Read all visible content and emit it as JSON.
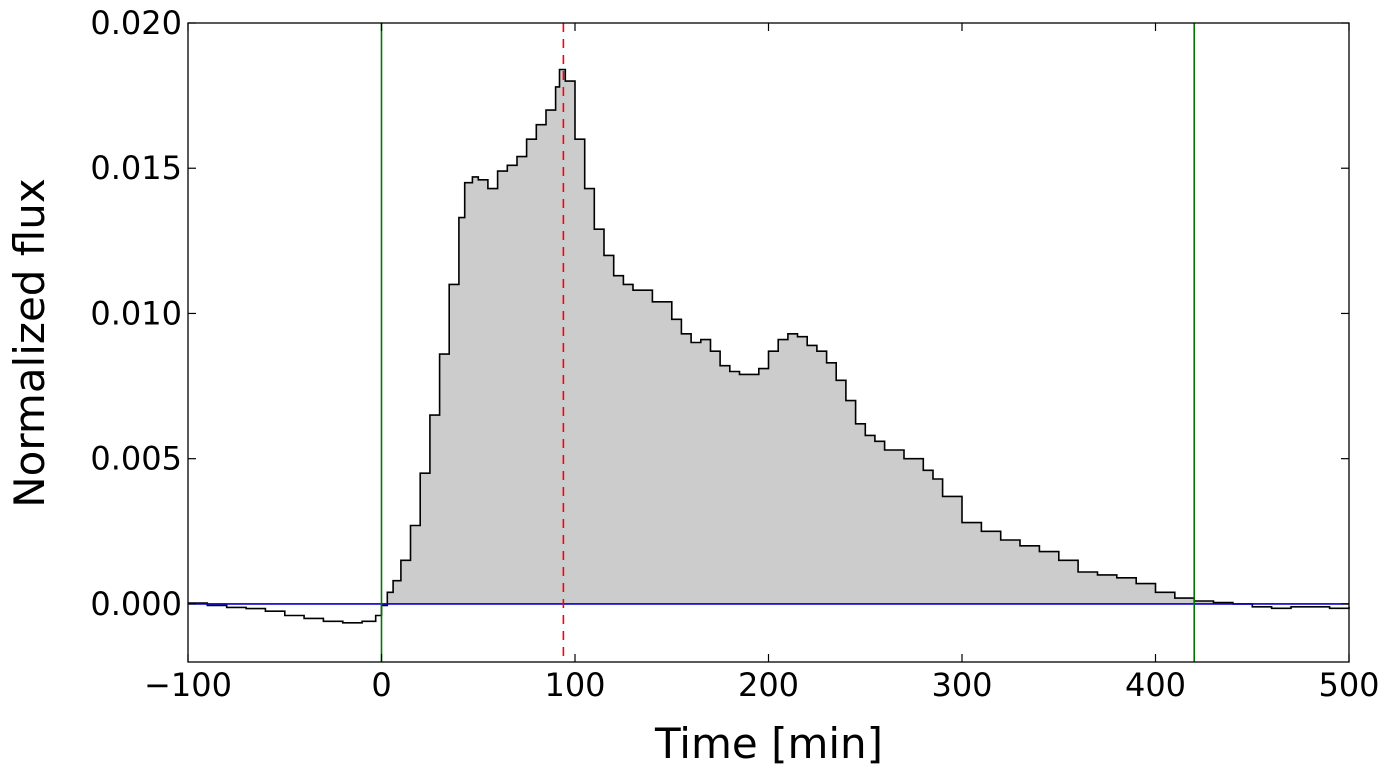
{
  "chart_data": {
    "type": "area",
    "title": "",
    "xlabel": "Time [min]",
    "ylabel": "Normalized flux",
    "xlim": [
      -100,
      500
    ],
    "ylim": [
      -0.002,
      0.02
    ],
    "x_ticks": [
      -100,
      0,
      100,
      200,
      300,
      400,
      500
    ],
    "x_tick_labels": [
      "−100",
      "0",
      "100",
      "200",
      "300",
      "400",
      "500"
    ],
    "y_ticks": [
      0.0,
      0.005,
      0.01,
      0.015,
      0.02
    ],
    "y_tick_labels": [
      "0.000",
      "0.005",
      "0.010",
      "0.015",
      "0.020"
    ],
    "grid": false,
    "series": [
      {
        "style": "step",
        "color": "#000000",
        "fill_color": "#cccccc",
        "fill_above": 0.0,
        "x": [
          -100,
          -90,
          -80,
          -70,
          -60,
          -50,
          -40,
          -30,
          -20,
          -10,
          -3,
          0,
          3,
          6,
          10,
          15,
          20,
          25,
          30,
          35,
          40,
          43,
          47,
          50,
          55,
          60,
          65,
          70,
          75,
          80,
          85,
          90,
          92,
          95,
          100,
          105,
          110,
          115,
          120,
          125,
          130,
          140,
          150,
          155,
          160,
          165,
          170,
          175,
          180,
          185,
          190,
          195,
          200,
          205,
          210,
          215,
          220,
          225,
          230,
          235,
          240,
          245,
          250,
          255,
          260,
          270,
          280,
          285,
          290,
          300,
          310,
          320,
          330,
          340,
          350,
          360,
          370,
          380,
          390,
          400,
          410,
          420,
          430,
          440,
          450,
          460,
          470,
          480,
          490,
          500
        ],
        "y": [
          3e-05,
          -5e-05,
          -0.00012,
          -0.00016,
          -0.00025,
          -0.0004,
          -0.0005,
          -0.0006,
          -0.00065,
          -0.0006,
          -0.0004,
          -5e-05,
          0.0004,
          0.0008,
          0.0015,
          0.0027,
          0.0045,
          0.0065,
          0.0086,
          0.011,
          0.0133,
          0.0145,
          0.0147,
          0.0146,
          0.0143,
          0.0149,
          0.0151,
          0.0154,
          0.016,
          0.0165,
          0.017,
          0.0178,
          0.0184,
          0.018,
          0.016,
          0.0143,
          0.0129,
          0.012,
          0.0113,
          0.011,
          0.0108,
          0.0104,
          0.0098,
          0.0093,
          0.009,
          0.0091,
          0.0087,
          0.0082,
          0.008,
          0.0079,
          0.0079,
          0.0081,
          0.0087,
          0.0091,
          0.0093,
          0.0092,
          0.0089,
          0.0087,
          0.0083,
          0.0077,
          0.007,
          0.0062,
          0.0058,
          0.0056,
          0.0053,
          0.005,
          0.0046,
          0.0043,
          0.0037,
          0.0028,
          0.0025,
          0.0022,
          0.002,
          0.0018,
          0.0015,
          0.0011,
          0.001,
          0.0009,
          0.0007,
          0.0004,
          0.0002,
          0.0001,
          5e-05,
          0.0,
          -0.0001,
          -0.00015,
          -0.0001,
          -0.0001,
          -0.00015,
          -0.0001
        ]
      }
    ],
    "hlines": [
      {
        "y": 0.0,
        "color": "#0000cc",
        "style": "solid"
      }
    ],
    "vlines": [
      {
        "x": 0,
        "color": "#007700",
        "style": "solid"
      },
      {
        "x": 420,
        "color": "#007700",
        "style": "solid"
      },
      {
        "x": 94,
        "color": "#ff0000",
        "style": "dashed"
      }
    ]
  }
}
